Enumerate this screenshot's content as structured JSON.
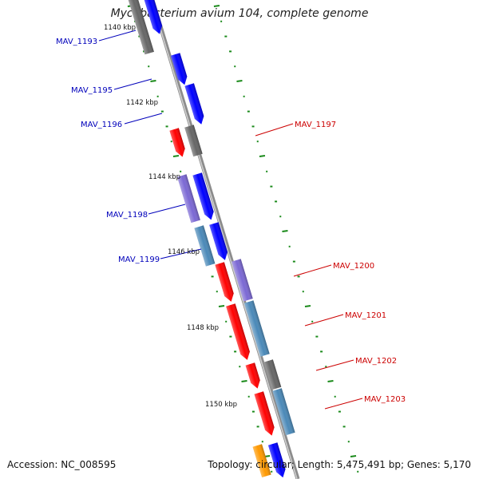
{
  "title": "Mycobacterium avium 104, complete genome",
  "footer": {
    "accession_label": "Accession:",
    "accession": "NC_008595",
    "topology_label": "Topology:",
    "topology": "circular",
    "length_label": "Length:",
    "length": "5,475,491 bp",
    "genes_label": "Genes:",
    "genes": "5,170"
  },
  "colors": {
    "backbone": "#8c8c8c",
    "tick": "#1a8a1a",
    "forward_label": "#cc0000",
    "reverse_label": "#0000bb",
    "blue": "#0000ff",
    "red": "#ff0000",
    "gray": "#666666",
    "purple": "#7b68d4",
    "steel": "#4a89b8",
    "orange": "#ff9900"
  },
  "tick_labels": [
    "1140 kbp",
    "1142 kbp",
    "1144 kbp",
    "1146 kbp",
    "1148 kbp",
    "1150 kbp"
  ],
  "gene_labels": {
    "left": [
      "MAV_1193",
      "MAV_1195",
      "MAV_1196",
      "MAV_1198",
      "MAV_1199"
    ],
    "right": [
      "MAV_1197",
      "MAV_1200",
      "MAV_1201",
      "MAV_1202",
      "MAV_1203"
    ]
  }
}
